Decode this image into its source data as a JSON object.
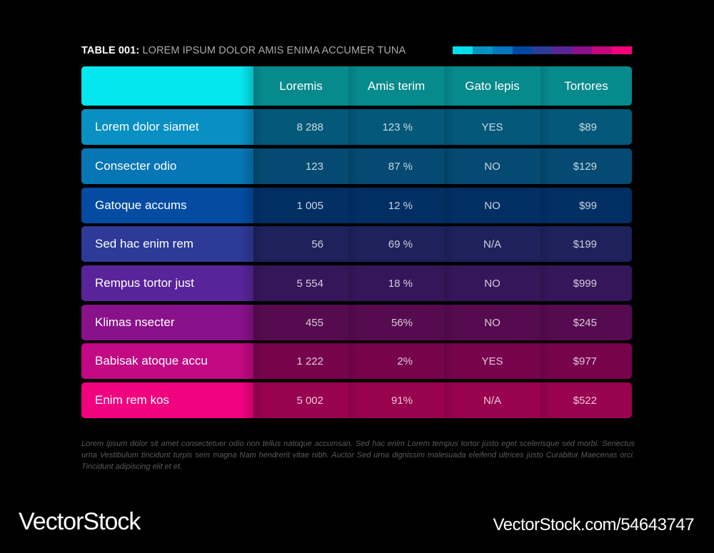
{
  "title": {
    "bold": "TABLE 001:",
    "rest": " LOREM IPSUM DOLOR AMIS ENIMA ACCUMER TUNA"
  },
  "colorbar": [
    "#00e0ea",
    "#0093c4",
    "#0077be",
    "#0048a4",
    "#2f3b98",
    "#5a2596",
    "#8a1189",
    "#c5087c",
    "#f5027c"
  ],
  "table": {
    "header": {
      "lead": "",
      "columns": [
        "Loremis",
        "Amis terim",
        "Gato lepis",
        "Tortores"
      ],
      "lead_color": "#05e6ee",
      "cell_color": "#078a8c"
    },
    "rows": [
      {
        "label": "Lorem dolor siamet",
        "values": [
          "8 288",
          "123 %",
          "YES",
          "$89"
        ],
        "lead_color": "#0890c3",
        "cell_color": "#04587a"
      },
      {
        "label": "Consecter odio",
        "values": [
          "123",
          "87 %",
          "NO",
          "$129"
        ],
        "lead_color": "#0676b5",
        "cell_color": "#044a72"
      },
      {
        "label": "Gatoque accums",
        "values": [
          "1 005",
          "12 %",
          "NO",
          "$99"
        ],
        "lead_color": "#034ca2",
        "cell_color": "#012f64"
      },
      {
        "label": "Sed hac enim rem",
        "values": [
          "56",
          "69 %",
          "N/A",
          "$199"
        ],
        "lead_color": "#2e3a98",
        "cell_color": "#1e215b"
      },
      {
        "label": "Rempus tortor just",
        "values": [
          "5 554",
          "18 %",
          "NO",
          "$999"
        ],
        "lead_color": "#59249a",
        "cell_color": "#35165a"
      },
      {
        "label": "Klimas nsecter",
        "values": [
          "455",
          "56%",
          "NO",
          "$245"
        ],
        "lead_color": "#891189",
        "cell_color": "#560b50"
      },
      {
        "label": "Babisak atoque accu",
        "values": [
          "1 222",
          "2%",
          "YES",
          "$977"
        ],
        "lead_color": "#c20882",
        "cell_color": "#77034c"
      },
      {
        "label": "Enim rem kos",
        "values": [
          "5 002",
          "91%",
          "N/A",
          "$522"
        ],
        "lead_color": "#f1027f",
        "cell_color": "#99024f"
      }
    ]
  },
  "footnote": "Lorem ipsum dolor sit amet consectetuer odio non tellus natoque accumsan. Sed hac enim Lorem tempus tortor justo eget scelerisque sed morbi. Senectus urna Vestibulum tincidunt turpis sem magna Nam hendrerit vitae nibh. Auctor Sed urna dignissim malesuada eleifend ultrices justo Curabitur Maecenas orci. Tincidunt adipiscing elit et et.",
  "watermark": {
    "left": "VectorStock",
    "right": "VectorStock.com/54643747"
  }
}
